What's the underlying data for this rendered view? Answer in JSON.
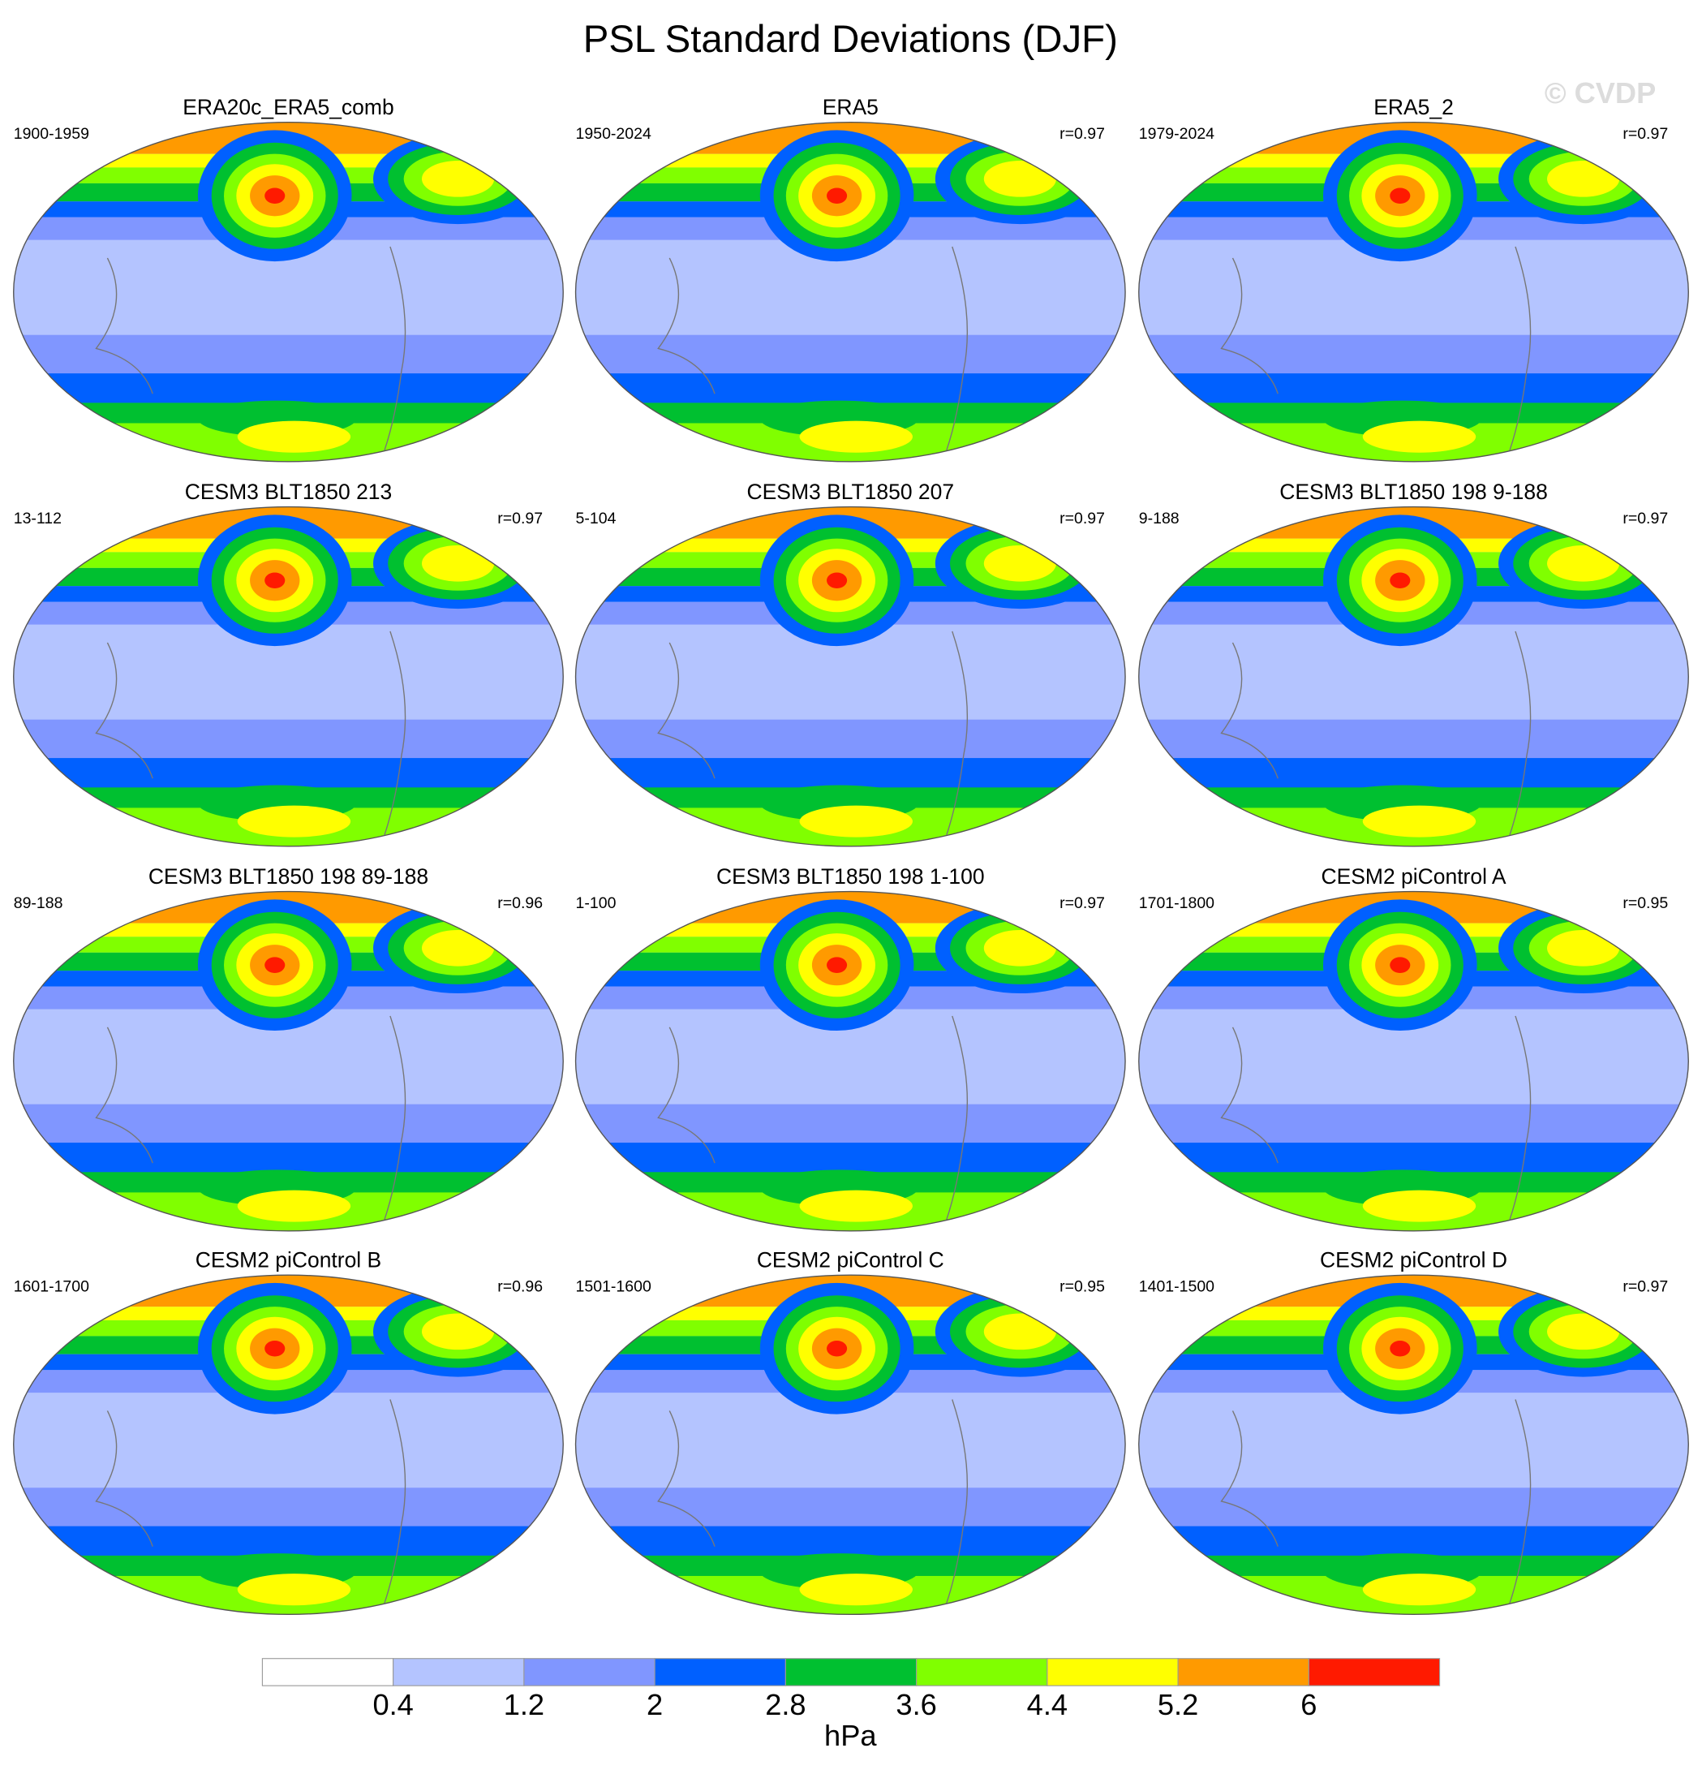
{
  "title": "PSL Standard Deviations (DJF)",
  "watermark": "© CVDP",
  "panels": [
    {
      "title": "ERA20c_ERA5_comb",
      "period": "1900-1959"
    },
    {
      "title": "ERA5",
      "period": "1950-2024",
      "r": "r=0.97"
    },
    {
      "title": "ERA5_2",
      "period": "1979-2024",
      "r": "r=0.97"
    },
    {
      "title": "CESM3 BLT1850 213",
      "period": "13-112",
      "r": "r=0.97"
    },
    {
      "title": "CESM3 BLT1850 207",
      "period": "5-104",
      "r": "r=0.97"
    },
    {
      "title": "CESM3 BLT1850 198 9-188",
      "period": "9-188",
      "r": "r=0.97"
    },
    {
      "title": "CESM3 BLT1850 198 89-188",
      "period": "89-188",
      "r": "r=0.96"
    },
    {
      "title": "CESM3 BLT1850 198 1-100",
      "period": "1-100",
      "r": "r=0.97"
    },
    {
      "title": "CESM2 piControl A",
      "period": "1701-1800",
      "r": "r=0.95"
    },
    {
      "title": "CESM2 piControl B",
      "period": "1601-1700",
      "r": "r=0.96"
    },
    {
      "title": "CESM2 piControl C",
      "period": "1501-1600",
      "r": "r=0.95"
    },
    {
      "title": "CESM2 piControl D",
      "period": "1401-1500",
      "r": "r=0.97"
    }
  ],
  "colorbar": {
    "ticks": [
      0.4,
      1.2,
      2,
      2.8,
      3.6,
      4.4,
      5.2,
      6
    ],
    "colors": [
      "#ffffff",
      "#b4c4ff",
      "#8096ff",
      "#0060ff",
      "#00c030",
      "#80ff00",
      "#ffff00",
      "#ff9a00",
      "#ff1a00"
    ],
    "unit": "hPa"
  }
}
